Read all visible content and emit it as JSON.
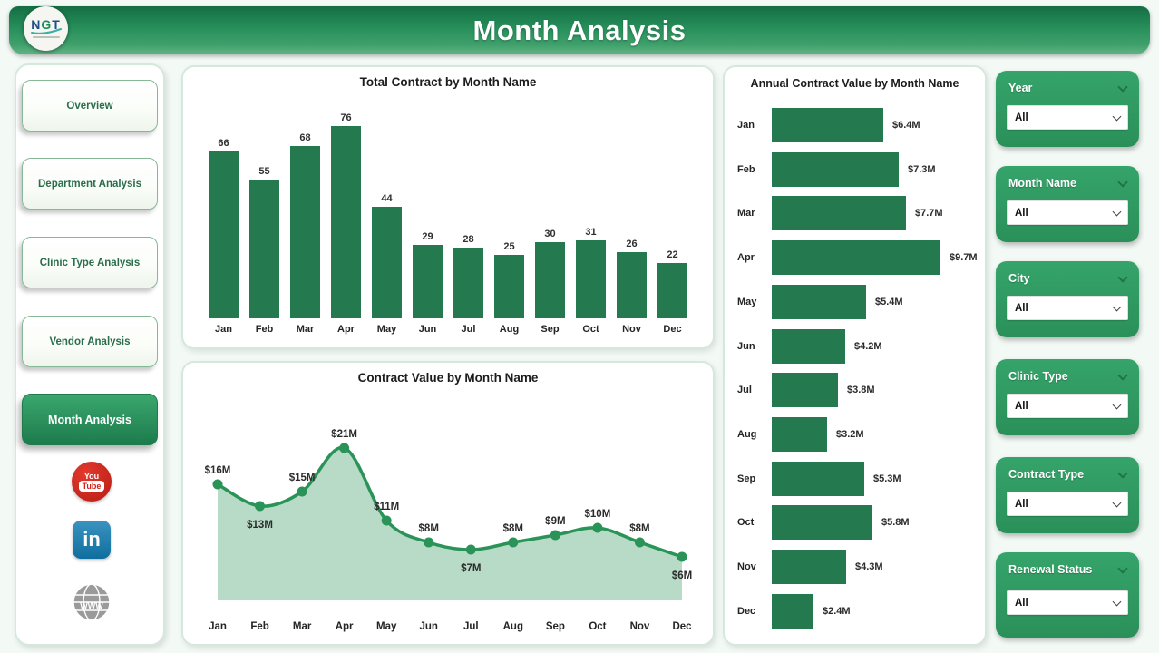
{
  "header": {
    "title": "Month Analysis",
    "logo_text_n": "N",
    "logo_text_g": "G",
    "logo_text_t": "T"
  },
  "sidebar": {
    "items": [
      {
        "label": "Overview",
        "active": false
      },
      {
        "label": "Department Analysis",
        "active": false
      },
      {
        "label": "Clinic Type Analysis",
        "active": false
      },
      {
        "label": "Vendor Analysis",
        "active": false
      },
      {
        "label": "Month Analysis",
        "active": true
      }
    ],
    "social": [
      {
        "name": "youtube",
        "label_top": "You",
        "label_bottom": "Tube"
      },
      {
        "name": "linkedin",
        "label": "in"
      },
      {
        "name": "website",
        "label": "WWW"
      }
    ]
  },
  "filters": [
    {
      "label": "Year",
      "value": "All"
    },
    {
      "label": "Month Name",
      "value": "All"
    },
    {
      "label": "City",
      "value": "All"
    },
    {
      "label": "Clinic Type",
      "value": "All"
    },
    {
      "label": "Contract Type",
      "value": "All"
    },
    {
      "label": "Renewal Status",
      "value": "All"
    }
  ],
  "chart_data": [
    {
      "type": "bar",
      "title": "Total Contract by Month Name",
      "categories": [
        "Jan",
        "Feb",
        "Mar",
        "Apr",
        "May",
        "Jun",
        "Jul",
        "Aug",
        "Sep",
        "Oct",
        "Nov",
        "Dec"
      ],
      "values": [
        66,
        55,
        68,
        76,
        44,
        29,
        28,
        25,
        30,
        31,
        26,
        22
      ],
      "ylim": [
        0,
        76
      ],
      "grid": false,
      "legend": "none"
    },
    {
      "type": "area",
      "title": "Contract Value by Month Name",
      "categories": [
        "Jan",
        "Feb",
        "Mar",
        "Apr",
        "May",
        "Jun",
        "Jul",
        "Aug",
        "Sep",
        "Oct",
        "Nov",
        "Dec"
      ],
      "values": [
        16,
        13,
        15,
        21,
        11,
        8,
        7,
        8,
        9,
        10,
        8,
        6
      ],
      "labels": [
        "$16M",
        "$13M",
        "$15M",
        "$21M",
        "$11M",
        "$8M",
        "$7M",
        "$8M",
        "$9M",
        "$10M",
        "$8M",
        "$6M"
      ],
      "label_side": [
        "above",
        "below",
        "above",
        "above",
        "above",
        "above",
        "below",
        "above",
        "above",
        "above",
        "above",
        "below"
      ],
      "ylim": [
        0,
        21
      ],
      "grid": false,
      "legend": "none"
    },
    {
      "type": "bar-horizontal",
      "title": "Annual Contract Value by Month Name",
      "categories": [
        "Jan",
        "Feb",
        "Mar",
        "Apr",
        "May",
        "Jun",
        "Jul",
        "Aug",
        "Sep",
        "Oct",
        "Nov",
        "Dec"
      ],
      "values": [
        6.4,
        7.3,
        7.7,
        9.7,
        5.4,
        4.2,
        3.8,
        3.2,
        5.3,
        5.8,
        4.3,
        2.4
      ],
      "labels": [
        "$6.4M",
        "$7.3M",
        "$7.7M",
        "$9.7M",
        "$5.4M",
        "$4.2M",
        "$3.8M",
        "$3.2M",
        "$5.3M",
        "$5.8M",
        "$4.3M",
        "$2.4M"
      ],
      "xlim": [
        0,
        9.7
      ],
      "grid": false,
      "legend": "none"
    }
  ],
  "colors": {
    "bar": "#24794f",
    "line": "#2a9458",
    "dot": "#2a9458",
    "area_fill": "#b7dbc6",
    "accent_green": "#2f9e62",
    "header_top": "#146e44",
    "header_bottom": "#63b485",
    "youtube_red": "#cf2017",
    "linkedin_blue": "#0f6e9e",
    "website_gray": "#999999"
  }
}
